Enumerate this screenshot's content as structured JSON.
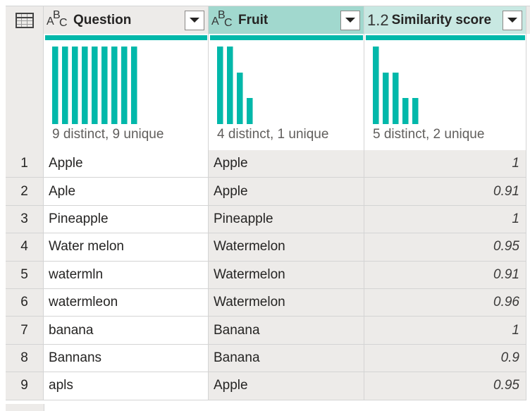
{
  "columns": [
    {
      "type_icon": "abc",
      "type_label_a": "A",
      "type_label_b": "B",
      "type_label_c": "C",
      "title": "Question",
      "profile": "9 distinct, 9 unique",
      "bars": [
        1,
        1,
        1,
        1,
        1,
        1,
        1,
        1,
        1
      ]
    },
    {
      "type_icon": "abc",
      "type_label_a": "A",
      "type_label_b": "B",
      "type_label_c": "C",
      "title": "Fruit",
      "profile": "4 distinct, 1 unique",
      "bars": [
        3,
        3,
        2,
        1
      ]
    },
    {
      "type_icon": "decimal",
      "type_label": "1.2",
      "title": "Similarity score",
      "profile": "5 distinct, 2 unique",
      "bars": [
        3,
        2,
        2,
        1,
        1
      ]
    }
  ],
  "colors": {
    "accent": "#01b8aa",
    "header_selected": "#a1d8ce",
    "header_light": "#c8e8e2",
    "gray": "#edebe9"
  },
  "rows": [
    {
      "n": "1",
      "question": "Apple",
      "fruit": "Apple",
      "score": "1"
    },
    {
      "n": "2",
      "question": "Aple",
      "fruit": "Apple",
      "score": "0.91"
    },
    {
      "n": "3",
      "question": "Pineapple",
      "fruit": "Pineapple",
      "score": "1"
    },
    {
      "n": "4",
      "question": "Water melon",
      "fruit": "Watermelon",
      "score": "0.95"
    },
    {
      "n": "5",
      "question": "watermln",
      "fruit": "Watermelon",
      "score": "0.91"
    },
    {
      "n": "6",
      "question": "watermleon",
      "fruit": "Watermelon",
      "score": "0.96"
    },
    {
      "n": "7",
      "question": "banana",
      "fruit": "Banana",
      "score": "1"
    },
    {
      "n": "8",
      "question": "Bannans",
      "fruit": "Banana",
      "score": "0.9"
    },
    {
      "n": "9",
      "question": "apls",
      "fruit": "Apple",
      "score": "0.95"
    }
  ]
}
